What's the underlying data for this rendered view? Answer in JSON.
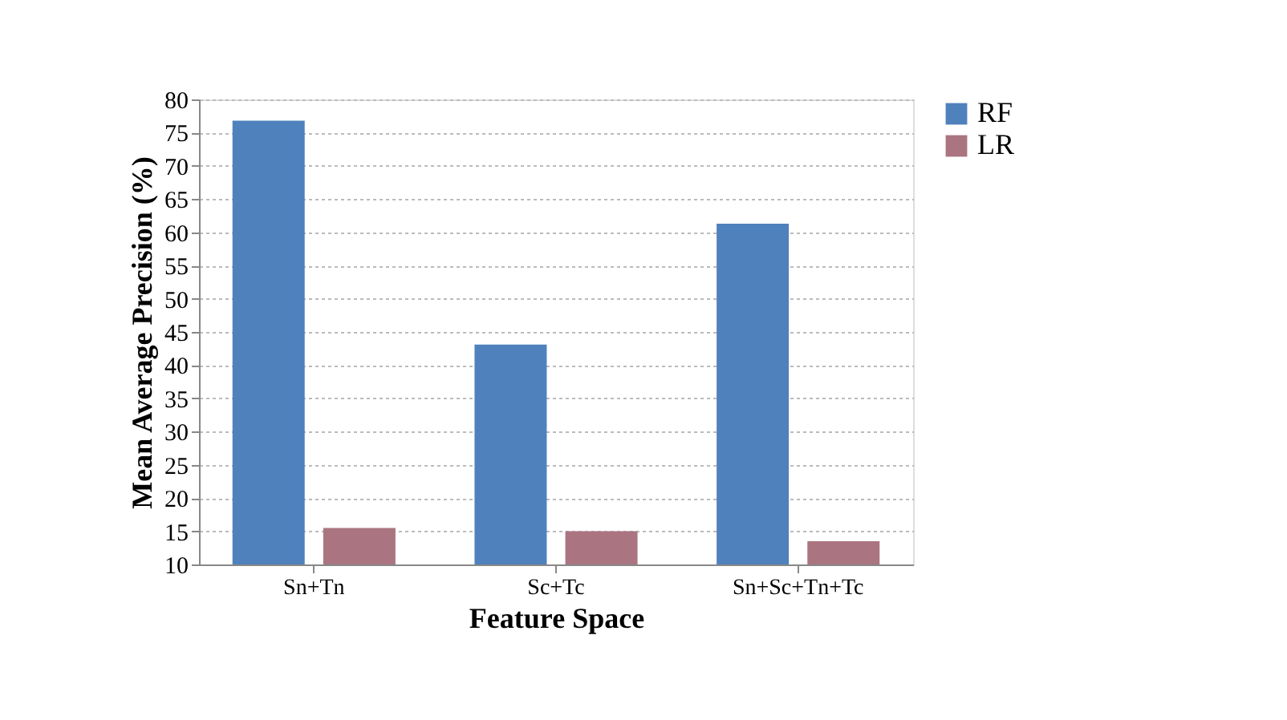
{
  "chart_data": {
    "type": "bar",
    "xlabel": "Feature Space",
    "ylabel": "Mean Average Precision (%)",
    "categories": [
      "Sn+Tn",
      "Sc+Tc",
      "Sn+Sc+Tn+Tc"
    ],
    "series": [
      {
        "name": "RF",
        "color": "#4f81bd",
        "values": [
          76.8,
          43.1,
          61.3
        ]
      },
      {
        "name": "LR",
        "color": "#aa7580",
        "values": [
          15.5,
          15.0,
          13.5
        ]
      }
    ],
    "ylim": [
      10,
      80
    ],
    "yticks": [
      10,
      15,
      20,
      25,
      30,
      35,
      40,
      45,
      50,
      55,
      60,
      65,
      70,
      75,
      80
    ],
    "grid": "y",
    "legend": "right"
  }
}
